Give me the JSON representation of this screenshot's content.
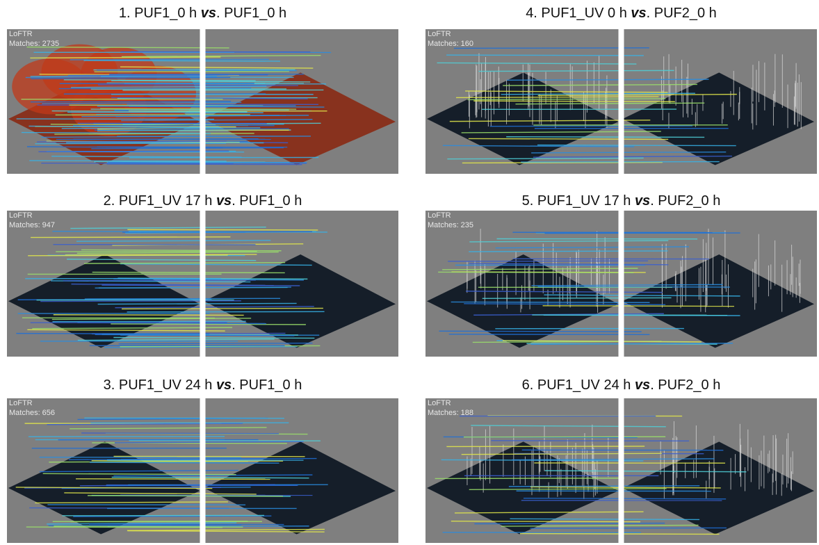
{
  "panels": [
    {
      "title_before": "1. PUF1_0 h ",
      "title_em": "vs",
      "title_after": ". PUF1_0 h",
      "method": "LoFTR",
      "matches": "Matches: 2735"
    },
    {
      "title_before": "2. PUF1_UV 17 h ",
      "title_em": "vs",
      "title_after": ". PUF1_0 h",
      "method": "LoFTR",
      "matches": "Matches: 947"
    },
    {
      "title_before": "3. PUF1_UV 24 h ",
      "title_em": "vs",
      "title_after": ". PUF1_0 h",
      "method": "LoFTR",
      "matches": "Matches: 656"
    },
    {
      "title_before": "4. PUF1_UV 0 h ",
      "title_em": "vs",
      "title_after": ". PUF2_0 h",
      "method": "LoFTR",
      "matches": "Matches: 160"
    },
    {
      "title_before": "5. PUF1_UV 17 h ",
      "title_em": "vs",
      "title_after": ". PUF2_0 h",
      "method": "LoFTR",
      "matches": "Matches: 235"
    },
    {
      "title_before": "6. PUF1_UV 24 h ",
      "title_em": "vs",
      "title_after": ". PUF2_0 h",
      "method": "LoFTR",
      "matches": "Matches: 188"
    }
  ]
}
